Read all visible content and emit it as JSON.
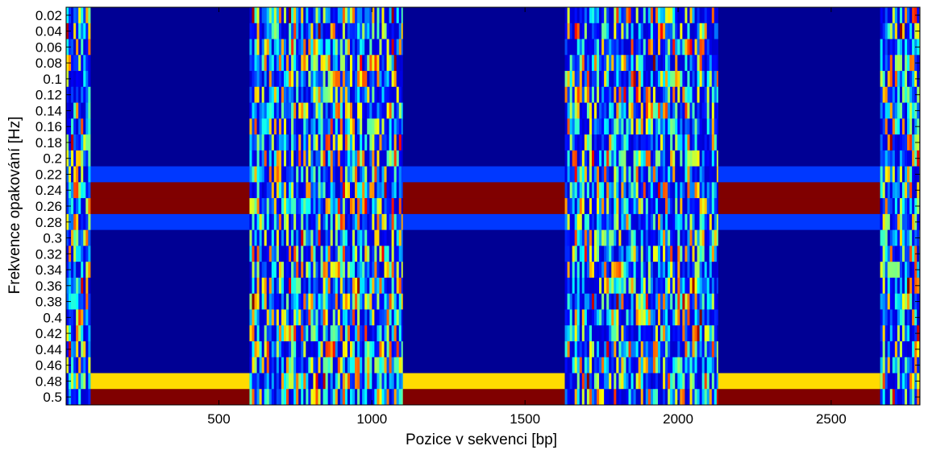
{
  "chart_data": {
    "type": "heatmap",
    "title": "",
    "xlabel": "Pozice v sekvenci [bp]",
    "ylabel": "Frekvence opakování [Hz]",
    "xlim": [
      1,
      2790
    ],
    "x_ticks": [
      500,
      1000,
      1500,
      2000,
      2500
    ],
    "y_ticks": [
      0.02,
      0.04,
      0.06,
      0.08,
      0.1,
      0.12,
      0.14,
      0.16,
      0.18,
      0.2,
      0.22,
      0.24,
      0.26,
      0.28,
      0.3,
      0.32,
      0.34,
      0.36,
      0.38,
      0.4,
      0.42,
      0.44,
      0.46,
      0.48,
      0.5
    ],
    "y_tick_labels": [
      "0.02",
      "0.04",
      "0.06",
      "0.08",
      "0.1",
      "0.12",
      "0.14",
      "0.16",
      "0.18",
      "0.2",
      "0.22",
      "0.24",
      "0.26",
      "0.28",
      "0.3",
      "0.32",
      "0.34",
      "0.36",
      "0.38",
      "0.4",
      "0.42",
      "0.44",
      "0.46",
      "0.48",
      "0.5"
    ],
    "colormap": "jet",
    "value_range": [
      0,
      1
    ],
    "regular_segments": [
      [
        80,
        600
      ],
      [
        1100,
        1630
      ],
      [
        2130,
        2660
      ]
    ],
    "irregular_segments": [
      [
        1,
        80
      ],
      [
        600,
        1100
      ],
      [
        1630,
        2130
      ],
      [
        2660,
        2790
      ]
    ],
    "regular_segment_values": {
      "0.22": 0.18,
      "0.24": 1.0,
      "0.26": 1.0,
      "0.28": 0.18,
      "0.48": 0.66,
      "0.5": 1.0,
      "other": 0.02
    },
    "grid": false,
    "legend": "none"
  }
}
